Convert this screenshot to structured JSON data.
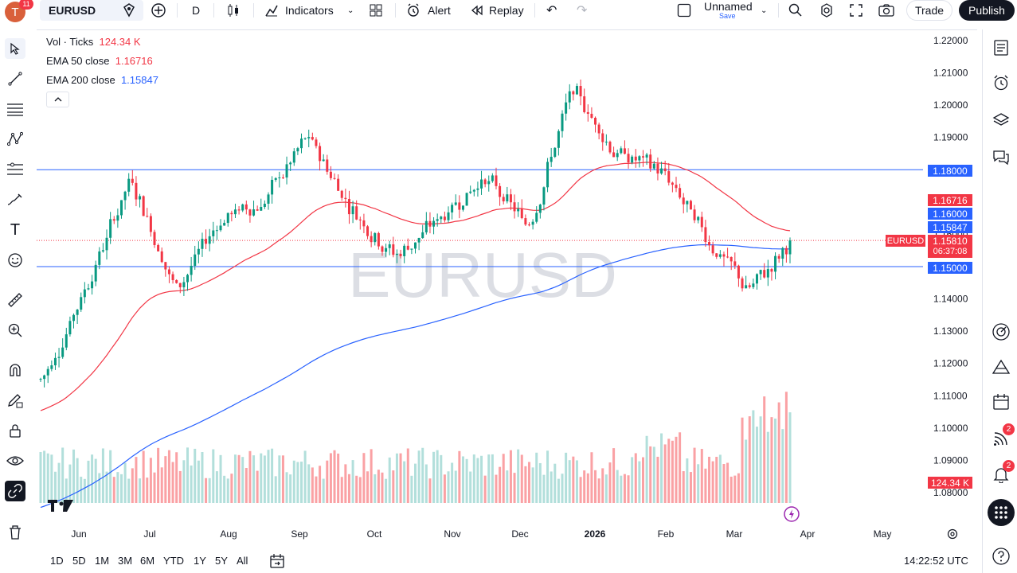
{
  "topbar": {
    "avatar_letter": "T",
    "notification_count": "11",
    "symbol": "EURUSD",
    "interval": "D",
    "indicators_label": "Indicators",
    "alert_label": "Alert",
    "replay_label": "Replay",
    "layout_name": "Unnamed",
    "layout_save": "Save",
    "trade_label": "Trade",
    "publish_label": "Publish"
  },
  "legend": {
    "vol_label": "Vol · Ticks",
    "vol_value": "124.34 K",
    "ema50_label": "EMA 50 close",
    "ema50_value": "1.16716",
    "ema200_label": "EMA 200 close",
    "ema200_value": "1.15847"
  },
  "watermark": "EURUSD",
  "price_axis": {
    "ticks": [
      "1.22000",
      "1.21000",
      "1.20000",
      "1.19000",
      "1.18000",
      "1.17000",
      "1.16000",
      "1.15000",
      "1.14000",
      "1.13000",
      "1.12000",
      "1.11000",
      "1.10000",
      "1.09000",
      "1.08000"
    ],
    "tags": {
      "hline_upper": "1.18000",
      "ema50": "1.16716",
      "round_level": "1.16000",
      "ema200": "1.15847",
      "symbol_tag": "EURUSD",
      "last_price": "1.15810",
      "countdown": "06:37:08",
      "hline_lower": "1.15000",
      "volume": "124.34 K"
    }
  },
  "time_axis": {
    "labels": [
      "Jun",
      "Jul",
      "Aug",
      "Sep",
      "Oct",
      "Nov",
      "Dec",
      "2026",
      "Feb",
      "Mar",
      "Apr",
      "May"
    ]
  },
  "bottombar": {
    "timeframes": [
      "1D",
      "5D",
      "1M",
      "3M",
      "6M",
      "YTD",
      "1Y",
      "5Y",
      "All"
    ],
    "clock": "14:22:52 UTC"
  },
  "right_toolbar": {
    "badge_a": "2",
    "badge_b": "2"
  },
  "colors": {
    "up": "#089981",
    "down": "#f23645",
    "ema50": "#f23645",
    "ema200": "#2962ff",
    "hline": "#2962ff",
    "vol_up": "#b2dfdb",
    "vol_down": "#faa1a4"
  },
  "chart_data": {
    "type": "candlestick",
    "symbol": "EURUSD",
    "interval": "D",
    "ylim": [
      1.075,
      1.225
    ],
    "horizontal_lines": [
      1.18,
      1.15
    ],
    "last_price": 1.1581,
    "month_labels": [
      "Jun",
      "Jul",
      "Aug",
      "Sep",
      "Oct",
      "Nov",
      "Dec",
      "2026",
      "Feb",
      "Mar",
      "Apr",
      "May"
    ],
    "monthly_price_path": [
      {
        "month": "May (late)",
        "price": 1.115
      },
      {
        "month": "Jun",
        "price": 1.145
      },
      {
        "month": "Jul",
        "price": 1.178
      },
      {
        "month": "Aug",
        "price": 1.142
      },
      {
        "month": "Aug (mid)",
        "price": 1.165
      },
      {
        "month": "Sep",
        "price": 1.17
      },
      {
        "month": "Sep (late)",
        "price": 1.19
      },
      {
        "month": "Oct",
        "price": 1.168
      },
      {
        "month": "Nov",
        "price": 1.153
      },
      {
        "month": "Dec",
        "price": 1.165
      },
      {
        "month": "Dec (late)",
        "price": 1.178
      },
      {
        "month": "2026",
        "price": 1.162
      },
      {
        "month": "Jan (late)",
        "price": 1.205
      },
      {
        "month": "Feb",
        "price": 1.185
      },
      {
        "month": "Feb (late)",
        "price": 1.18
      },
      {
        "month": "Mar",
        "price": 1.16
      },
      {
        "month": "Mar (mid)",
        "price": 1.142
      },
      {
        "month": "Mar (late)",
        "price": 1.158
      }
    ],
    "ema50_last": 1.16716,
    "ema200_last": 1.15847,
    "volume_last": "124.34 K"
  }
}
